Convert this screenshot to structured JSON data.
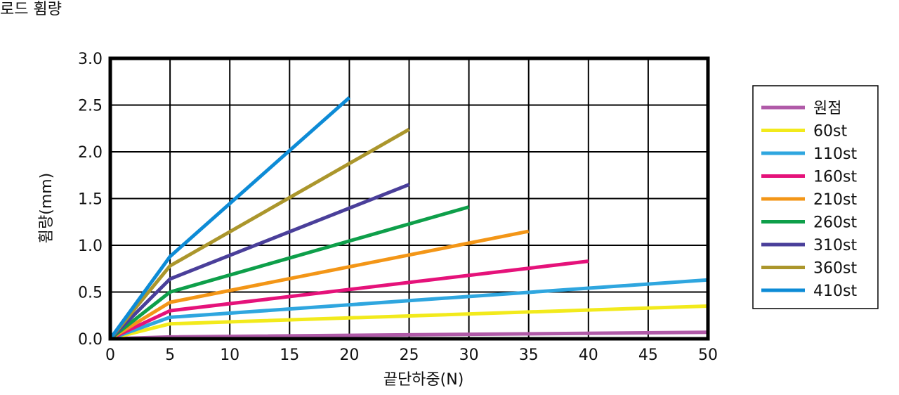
{
  "page": {
    "title": "로드 휨량"
  },
  "chart_data": {
    "type": "line",
    "title": "로드 휨량",
    "xlabel": "끝단하중(N)",
    "ylabel": "휨량(mm)",
    "xlim": [
      0,
      50
    ],
    "ylim": [
      0,
      3.0
    ],
    "x_ticks": [
      "0",
      "5",
      "10",
      "15",
      "20",
      "25",
      "30",
      "35",
      "40",
      "45",
      "50"
    ],
    "y_ticks": [
      "0.0",
      "0.5",
      "1.0",
      "1.5",
      "2.0",
      "2.5",
      "3.0"
    ],
    "grid": true,
    "legend_position": "right",
    "series": [
      {
        "name": "원점",
        "color": "#b05aa8",
        "x": [
          0,
          5,
          50
        ],
        "y": [
          0,
          0.02,
          0.07
        ]
      },
      {
        "name": "60st",
        "color": "#f2ea1c",
        "x": [
          0,
          5,
          50
        ],
        "y": [
          0,
          0.16,
          0.35
        ]
      },
      {
        "name": "110st",
        "color": "#2fa6df",
        "x": [
          0,
          5,
          50
        ],
        "y": [
          0,
          0.23,
          0.63
        ]
      },
      {
        "name": "160st",
        "color": "#e5127a",
        "x": [
          0,
          5,
          40
        ],
        "y": [
          0,
          0.3,
          0.83
        ]
      },
      {
        "name": "210st",
        "color": "#f39617",
        "x": [
          0,
          5,
          35
        ],
        "y": [
          0,
          0.39,
          1.15
        ]
      },
      {
        "name": "260st",
        "color": "#0e9f4a",
        "x": [
          0,
          5,
          30
        ],
        "y": [
          0,
          0.5,
          1.41
        ]
      },
      {
        "name": "310st",
        "color": "#4a3f9a",
        "x": [
          0,
          5,
          25
        ],
        "y": [
          0,
          0.64,
          1.65
        ]
      },
      {
        "name": "360st",
        "color": "#ab962c",
        "x": [
          0,
          5,
          25
        ],
        "y": [
          0,
          0.78,
          2.24
        ]
      },
      {
        "name": "410st",
        "color": "#0d8bd6",
        "x": [
          0,
          5,
          20
        ],
        "y": [
          0,
          0.88,
          2.58
        ]
      }
    ]
  }
}
